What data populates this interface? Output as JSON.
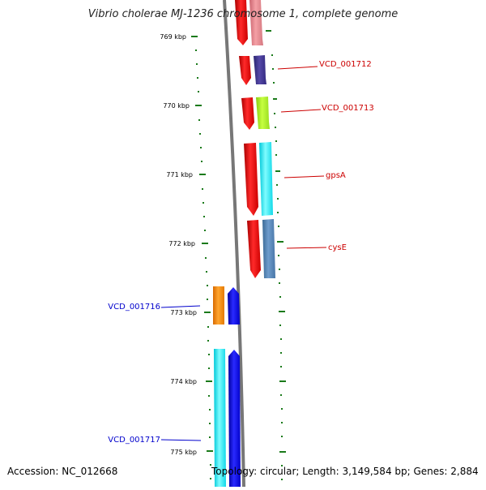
{
  "title": "Vibrio cholerae MJ-1236 chromosome 1, complete genome",
  "accession": "Accession: NC_012668",
  "summary": "Topology: circular; Length: 3,149,584 bp; Genes: 2,884",
  "ticks": [
    "769 kbp",
    "770 kbp",
    "771 kbp",
    "772 kbp",
    "773 kbp",
    "774 kbp",
    "775 kbp"
  ],
  "gene_labels": [
    {
      "name": "VCD_001712",
      "color": "#cc0000"
    },
    {
      "name": "VCD_001713",
      "color": "#cc0000"
    },
    {
      "name": "gpsA",
      "color": "#cc0000"
    },
    {
      "name": "cysE",
      "color": "#cc0000"
    },
    {
      "name": "VCD_001716",
      "color": "#0000cc"
    },
    {
      "name": "VCD_001717",
      "color": "#0000cc"
    }
  ],
  "colors": {
    "forward_strand": "#ff0000",
    "reverse_strand": "#0000ff",
    "backbone": "#777777",
    "tick": "#1a7a1a"
  }
}
